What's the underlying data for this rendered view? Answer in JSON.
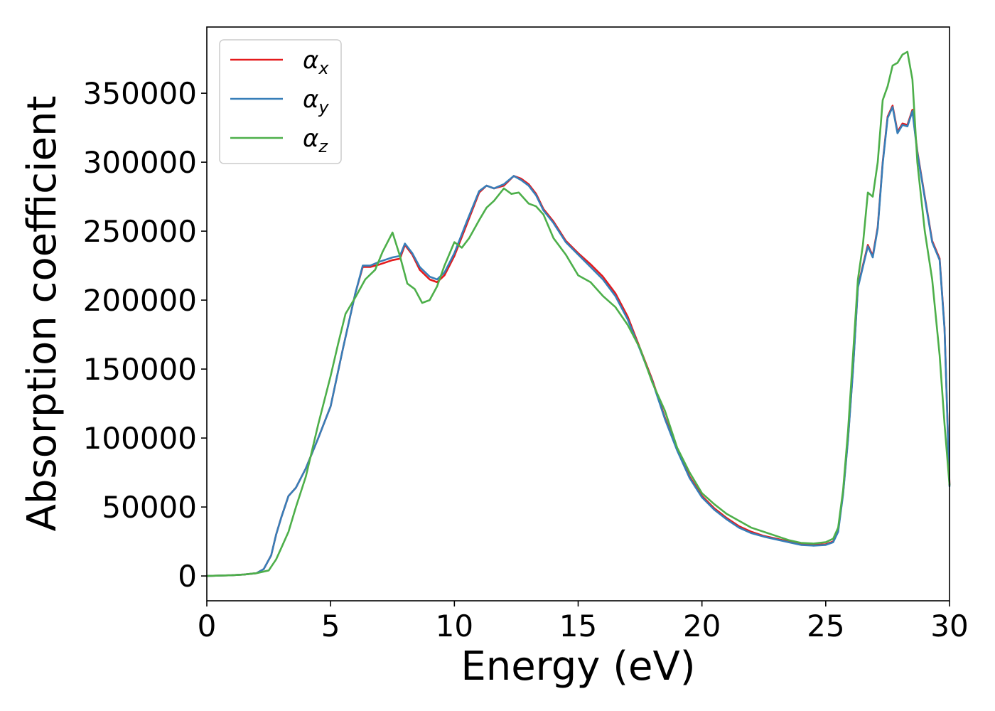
{
  "chart_data": {
    "type": "line",
    "xlabel": "Energy (eV)",
    "ylabel": "Absorption coefficient",
    "xlim": [
      0,
      30
    ],
    "ylim": [
      -18000,
      398000
    ],
    "xticks": [
      0,
      5,
      10,
      15,
      20,
      25,
      30
    ],
    "yticks": [
      0,
      50000,
      100000,
      150000,
      200000,
      250000,
      300000,
      350000
    ],
    "grid": false,
    "legend_position": "top-left",
    "series": [
      {
        "name": "α",
        "sub": "x",
        "color": "#e41a1c",
        "x": [
          0,
          1,
          1.5,
          2,
          2.3,
          2.6,
          2.8,
          3.0,
          3.3,
          3.6,
          4.0,
          4.5,
          5.0,
          5.5,
          6.0,
          6.3,
          6.6,
          7.0,
          7.5,
          7.8,
          8.0,
          8.3,
          8.6,
          9.0,
          9.3,
          9.6,
          10.0,
          10.5,
          11.0,
          11.3,
          11.6,
          12.0,
          12.4,
          12.7,
          13.0,
          13.3,
          13.6,
          14.0,
          14.5,
          15.0,
          15.5,
          16.0,
          16.5,
          17.0,
          17.5,
          18.0,
          18.5,
          19.0,
          19.5,
          20.0,
          20.5,
          21.0,
          21.5,
          22.0,
          22.5,
          23.0,
          23.5,
          24.0,
          24.5,
          25.0,
          25.3,
          25.5,
          25.7,
          25.9,
          26.1,
          26.3,
          26.5,
          26.7,
          26.9,
          27.1,
          27.3,
          27.5,
          27.7,
          27.9,
          28.1,
          28.3,
          28.5,
          28.7,
          29.0,
          29.3,
          29.6,
          29.8,
          30.0
        ],
        "y": [
          0,
          500,
          1000,
          2000,
          5000,
          15000,
          30000,
          42000,
          58000,
          64000,
          78000,
          100000,
          123000,
          165000,
          205000,
          224000,
          224000,
          226000,
          229000,
          230000,
          240000,
          233000,
          222000,
          215000,
          213000,
          218000,
          232000,
          255000,
          278000,
          283000,
          281000,
          283000,
          290000,
          288000,
          284000,
          277000,
          266000,
          257000,
          243000,
          234000,
          226000,
          217000,
          205000,
          188000,
          165000,
          142000,
          115000,
          92000,
          72000,
          58000,
          49000,
          42000,
          36000,
          32000,
          29000,
          27000,
          25000,
          23000,
          22500,
          23000,
          25000,
          33000,
          60000,
          100000,
          150000,
          210000,
          225000,
          240000,
          232000,
          253000,
          300000,
          333000,
          341000,
          322000,
          328000,
          327000,
          338000,
          308000,
          275000,
          243000,
          230000,
          180000,
          66000
        ]
      },
      {
        "name": "α",
        "sub": "y",
        "color": "#377eb8",
        "x": [
          0,
          1,
          1.5,
          2,
          2.3,
          2.6,
          2.8,
          3.0,
          3.3,
          3.6,
          4.0,
          4.5,
          5.0,
          5.5,
          6.0,
          6.3,
          6.6,
          7.0,
          7.5,
          7.8,
          8.0,
          8.3,
          8.6,
          9.0,
          9.3,
          9.6,
          10.0,
          10.5,
          11.0,
          11.3,
          11.6,
          12.0,
          12.4,
          12.7,
          13.0,
          13.3,
          13.6,
          14.0,
          14.5,
          15.0,
          15.5,
          16.0,
          16.5,
          17.0,
          17.5,
          18.0,
          18.5,
          19.0,
          19.5,
          20.0,
          20.5,
          21.0,
          21.5,
          22.0,
          22.5,
          23.0,
          23.5,
          24.0,
          24.5,
          25.0,
          25.3,
          25.5,
          25.7,
          25.9,
          26.1,
          26.3,
          26.5,
          26.7,
          26.9,
          27.1,
          27.3,
          27.5,
          27.7,
          27.9,
          28.1,
          28.3,
          28.5,
          28.7,
          29.0,
          29.3,
          29.6,
          29.8,
          30.0
        ],
        "y": [
          0,
          500,
          1000,
          2000,
          5000,
          15000,
          30000,
          42000,
          58000,
          64000,
          78000,
          100000,
          123000,
          165000,
          205000,
          225000,
          225000,
          228000,
          231000,
          232000,
          241000,
          234000,
          224000,
          217000,
          215000,
          220000,
          234000,
          257000,
          279000,
          283000,
          281000,
          284000,
          290000,
          287000,
          283000,
          276000,
          265000,
          256000,
          242000,
          233000,
          224000,
          215000,
          203000,
          186000,
          164000,
          141000,
          114000,
          91000,
          71000,
          57000,
          48000,
          41000,
          35000,
          31000,
          28500,
          26500,
          24500,
          22500,
          22000,
          22500,
          24500,
          32000,
          59000,
          99000,
          149000,
          209000,
          224000,
          239000,
          231000,
          252000,
          299000,
          332000,
          340000,
          321000,
          327000,
          326000,
          337000,
          307000,
          274000,
          242000,
          229000,
          179000,
          65000
        ]
      },
      {
        "name": "α",
        "sub": "z",
        "color": "#4daf4a",
        "x": [
          0,
          1,
          1.5,
          2,
          2.5,
          2.8,
          3.0,
          3.3,
          3.6,
          4.0,
          4.5,
          5.0,
          5.3,
          5.6,
          6.0,
          6.4,
          6.8,
          7.1,
          7.5,
          7.8,
          8.1,
          8.4,
          8.7,
          9.0,
          9.3,
          9.6,
          10.0,
          10.3,
          10.6,
          11.0,
          11.3,
          11.6,
          12.0,
          12.3,
          12.6,
          13.0,
          13.3,
          13.6,
          14.0,
          14.5,
          15.0,
          15.5,
          16.0,
          16.5,
          17.0,
          17.5,
          18.0,
          18.5,
          19.0,
          19.5,
          20.0,
          20.5,
          21.0,
          21.5,
          22.0,
          22.5,
          23.0,
          23.5,
          24.0,
          24.5,
          25.0,
          25.3,
          25.5,
          25.7,
          25.9,
          26.1,
          26.3,
          26.5,
          26.7,
          26.9,
          27.1,
          27.3,
          27.5,
          27.7,
          27.9,
          28.1,
          28.3,
          28.5,
          28.7,
          29.0,
          29.3,
          29.6,
          29.8,
          30.0
        ],
        "y": [
          0,
          500,
          1000,
          2000,
          4000,
          12000,
          20000,
          32000,
          50000,
          72000,
          110000,
          145000,
          168000,
          190000,
          202000,
          215000,
          222000,
          235000,
          249000,
          232000,
          212000,
          208000,
          198000,
          200000,
          210000,
          225000,
          242000,
          238000,
          245000,
          258000,
          267000,
          272000,
          281000,
          277000,
          278000,
          270000,
          268000,
          262000,
          245000,
          233000,
          218000,
          213000,
          203000,
          195000,
          182000,
          165000,
          140000,
          120000,
          93000,
          75000,
          60000,
          52000,
          45000,
          40000,
          35000,
          32000,
          29000,
          26000,
          24000,
          23500,
          24500,
          27000,
          35000,
          62000,
          105000,
          160000,
          215000,
          240000,
          278000,
          275000,
          300000,
          345000,
          355000,
          370000,
          372000,
          378000,
          380000,
          360000,
          300000,
          250000,
          215000,
          160000,
          110000,
          66000
        ]
      }
    ]
  }
}
